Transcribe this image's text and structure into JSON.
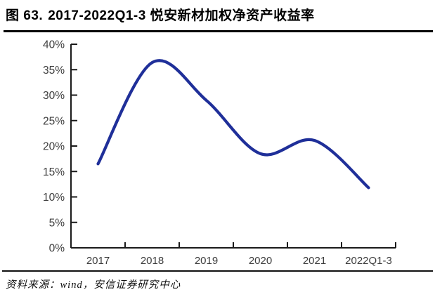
{
  "header": {
    "figure_label": "图 63.",
    "title": "2017-2022Q1-3 悦安新材加权净资产收益率"
  },
  "footer": {
    "source": "资料来源：wind，安信证券研究中心"
  },
  "colors": {
    "line": "#1F2F99",
    "axis": "#1a1a1a",
    "tick_label": "#3d3d3d"
  },
  "chart_data": {
    "type": "line",
    "title": "2017-2022Q1-3 悦安新材加权净资产收益率",
    "categories": [
      "2017",
      "2018",
      "2019",
      "2020",
      "2021",
      "2022Q1-3"
    ],
    "values": [
      16.5,
      36.4,
      29.0,
      18.5,
      21.1,
      11.8
    ],
    "unit": "%",
    "ylabel": "",
    "xlabel": "",
    "ylim": [
      0,
      40
    ],
    "y_tick_step": 5,
    "y_tick_labels": [
      "0%",
      "5%",
      "10%",
      "15%",
      "20%",
      "25%",
      "30%",
      "35%",
      "40%"
    ],
    "grid": false,
    "legend_position": "none",
    "smooth": true
  }
}
